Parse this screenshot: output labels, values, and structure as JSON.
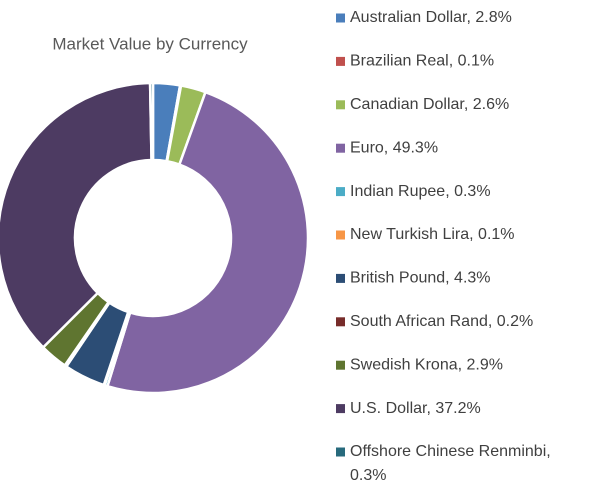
{
  "chart_data": {
    "type": "donut",
    "title": "Market Value by Currency",
    "categories": [
      "Australian Dollar, 2.8%",
      "Brazilian Real, 0.1%",
      "Canadian Dollar, 2.6%",
      "Euro, 49.3%",
      "Indian Rupee, 0.3%",
      "New Turkish Lira, 0.1%",
      "British Pound, 4.3%",
      "South African Rand, 0.2%",
      "Swedish Krona, 2.9%",
      "U.S. Dollar, 37.2%",
      "Offshore Chinese Renminbi, 0.3%"
    ],
    "values": [
      2.8,
      0.1,
      2.6,
      49.3,
      0.3,
      0.1,
      4.3,
      0.2,
      2.9,
      37.2,
      0.3
    ],
    "colors": [
      "#4a7ebb",
      "#c0504d",
      "#9bbb59",
      "#8064a2",
      "#4bacc6",
      "#f79646",
      "#2c4d75",
      "#772c2a",
      "#5f7530",
      "#4d3b62",
      "#276a7c"
    ],
    "legend": "right"
  }
}
